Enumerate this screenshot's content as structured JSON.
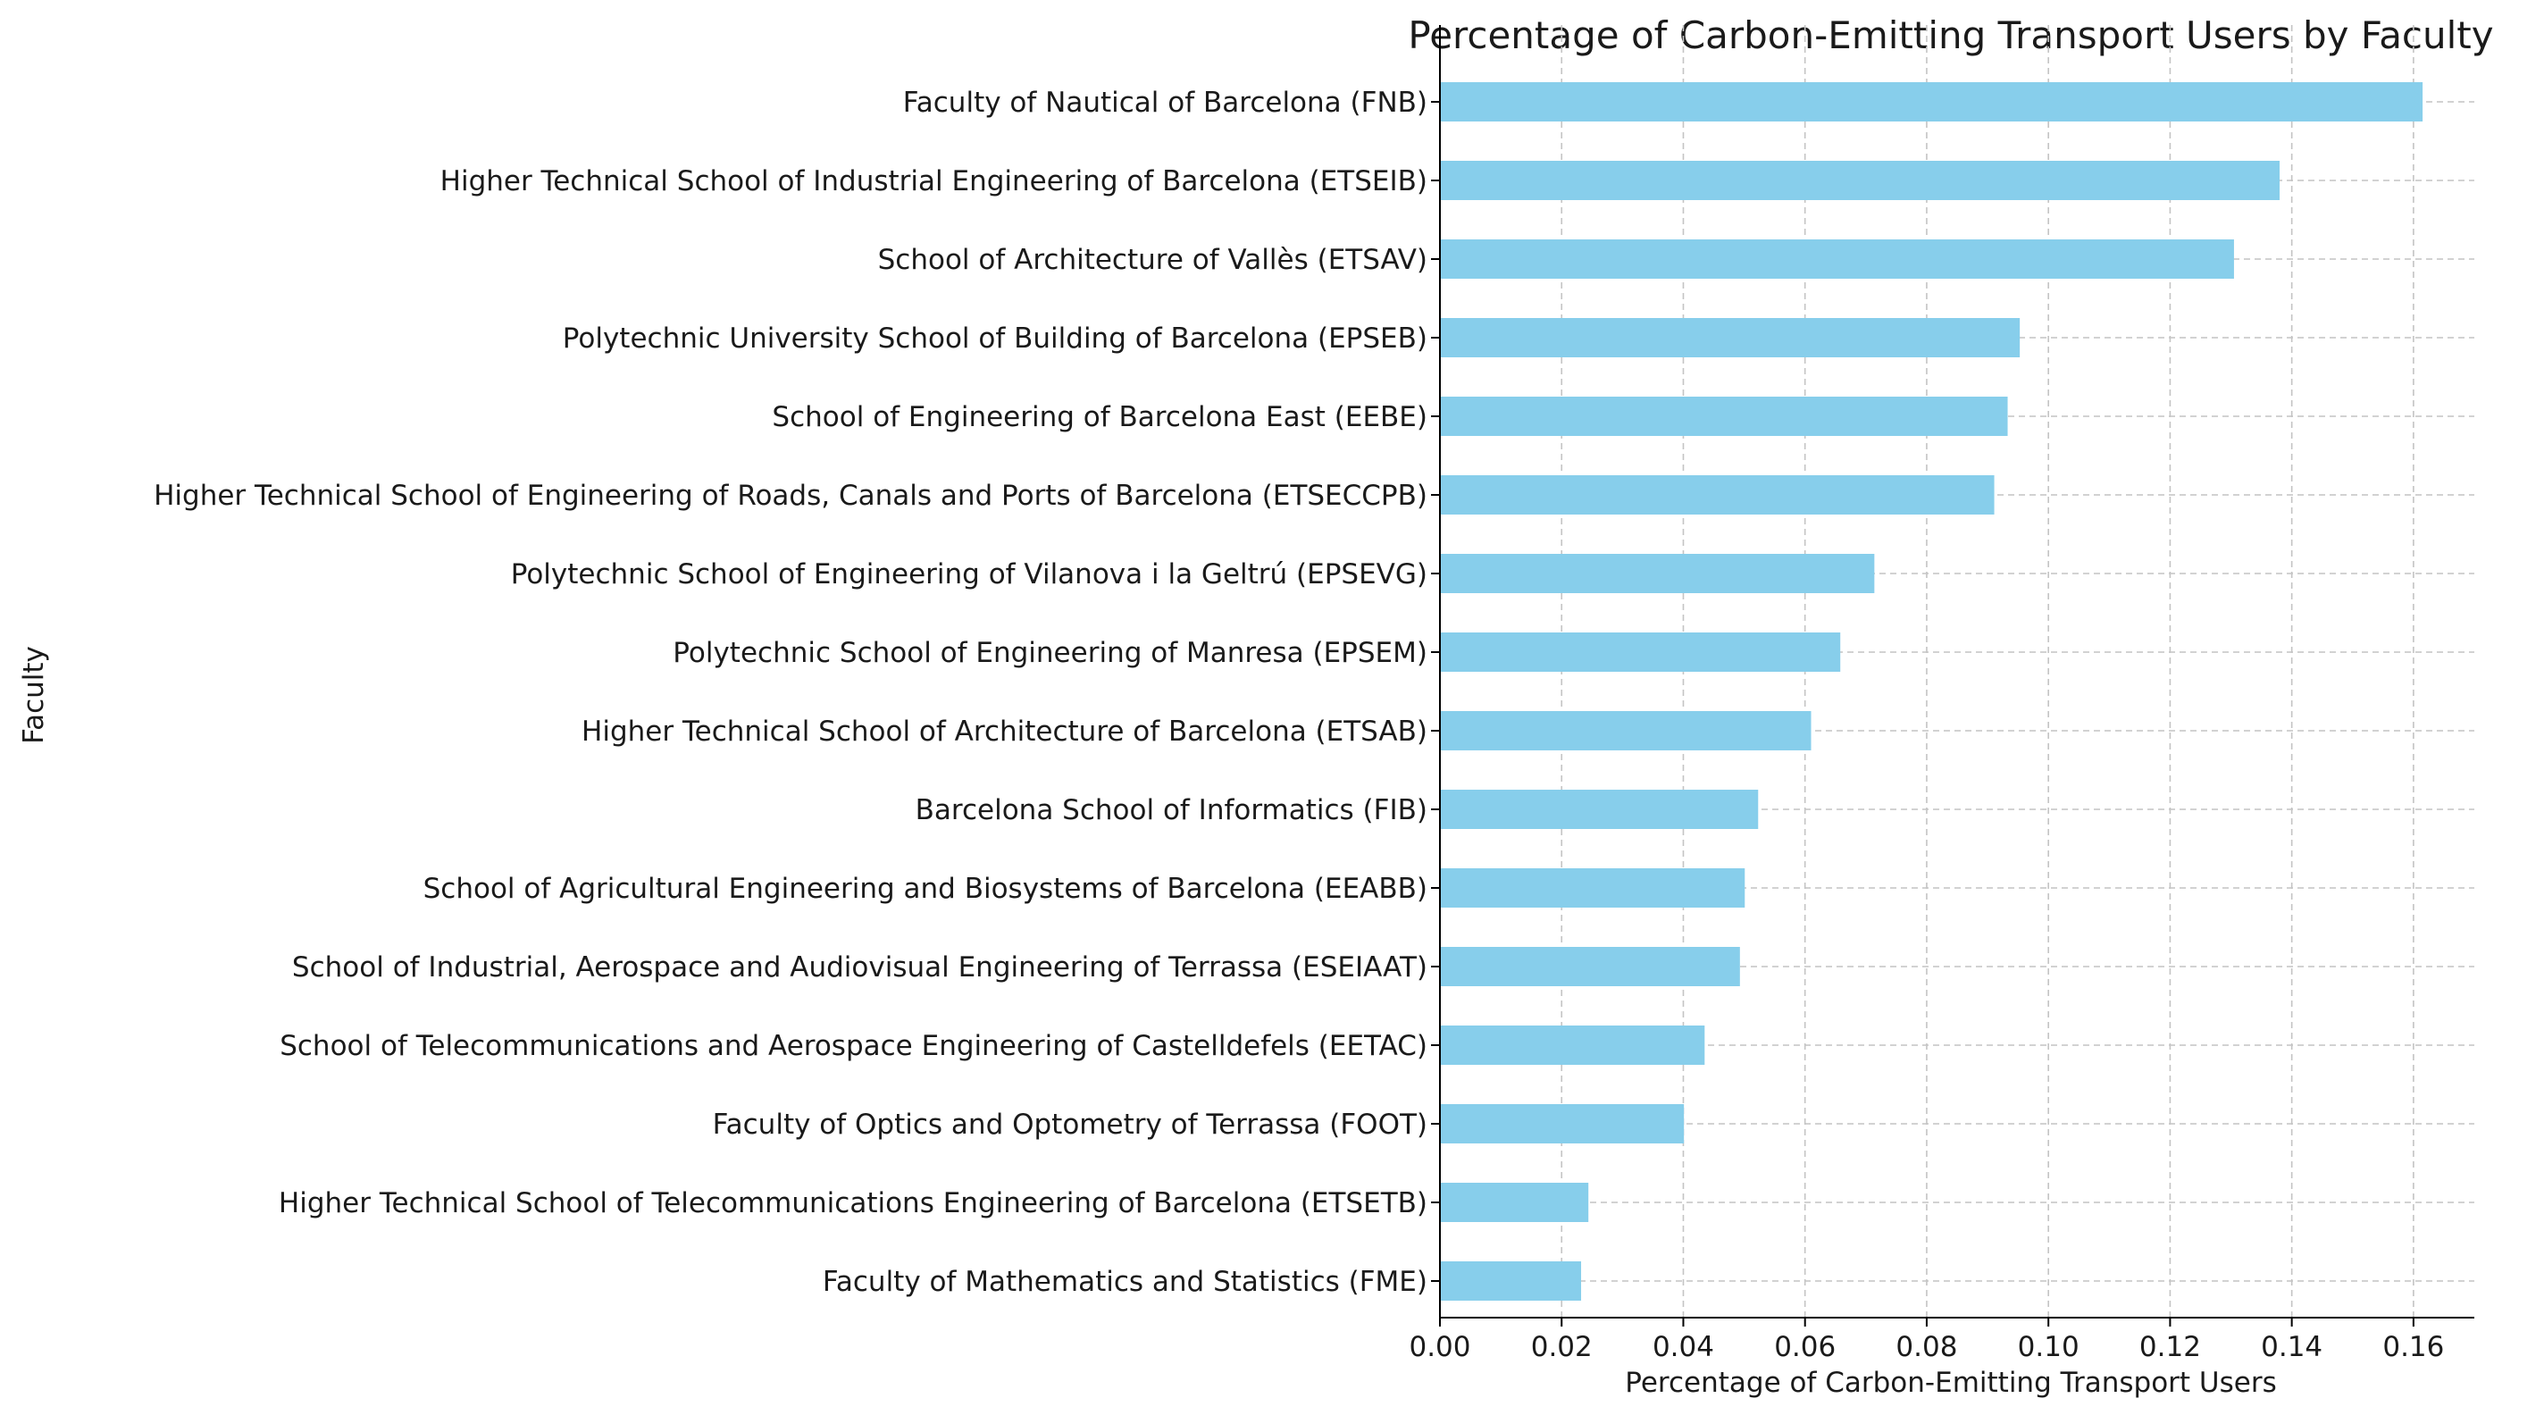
{
  "chart_data": {
    "type": "bar",
    "orientation": "horizontal",
    "title": "Percentage of Carbon-Emitting Transport Users by Faculty",
    "xlabel": "Percentage of Carbon-Emitting Transport Users",
    "ylabel": "Faculty",
    "xlim": [
      0,
      0.17
    ],
    "xticks": [
      0.0,
      0.02,
      0.04,
      0.06,
      0.08,
      0.1,
      0.12,
      0.14,
      0.16
    ],
    "xtick_labels": [
      "0.00",
      "0.02",
      "0.04",
      "0.06",
      "0.08",
      "0.10",
      "0.12",
      "0.14",
      "0.16"
    ],
    "grid": true,
    "bar_color": "#87ceeb",
    "categories": [
      "Faculty of Nautical of Barcelona (FNB)",
      "Higher Technical School of Industrial Engineering of Barcelona (ETSEIB)",
      "School of Architecture of Vallès (ETSAV)",
      "Polytechnic University School of Building of Barcelona (EPSEB)",
      "School of Engineering of Barcelona East (EEBE)",
      "Higher Technical School of Engineering of Roads, Canals and Ports of Barcelona (ETSECCPB)",
      "Polytechnic School of Engineering of Vilanova i la Geltrú (EPSEVG)",
      "Polytechnic School of Engineering of Manresa (EPSEM)",
      "Higher Technical School of Architecture of Barcelona (ETSAB)",
      "Barcelona School of Informatics (FIB)",
      "School of Agricultural Engineering and Biosystems of Barcelona (EEABB)",
      "School of Industrial, Aerospace and Audiovisual Engineering of Terrassa (ESEIAAT)",
      "School of Telecommunications and Aerospace Engineering of Castelldefels (EETAC)",
      "Faculty of Optics and Optometry of Terrassa (FOOT)",
      "Higher Technical School of Telecommunications Engineering of Barcelona (ETSETB)",
      "Faculty of Mathematics and Statistics (FME)"
    ],
    "values": [
      0.1615,
      0.138,
      0.1305,
      0.0953,
      0.0933,
      0.0911,
      0.0714,
      0.0658,
      0.061,
      0.0523,
      0.0501,
      0.0493,
      0.0435,
      0.0401,
      0.0244,
      0.0232
    ]
  }
}
